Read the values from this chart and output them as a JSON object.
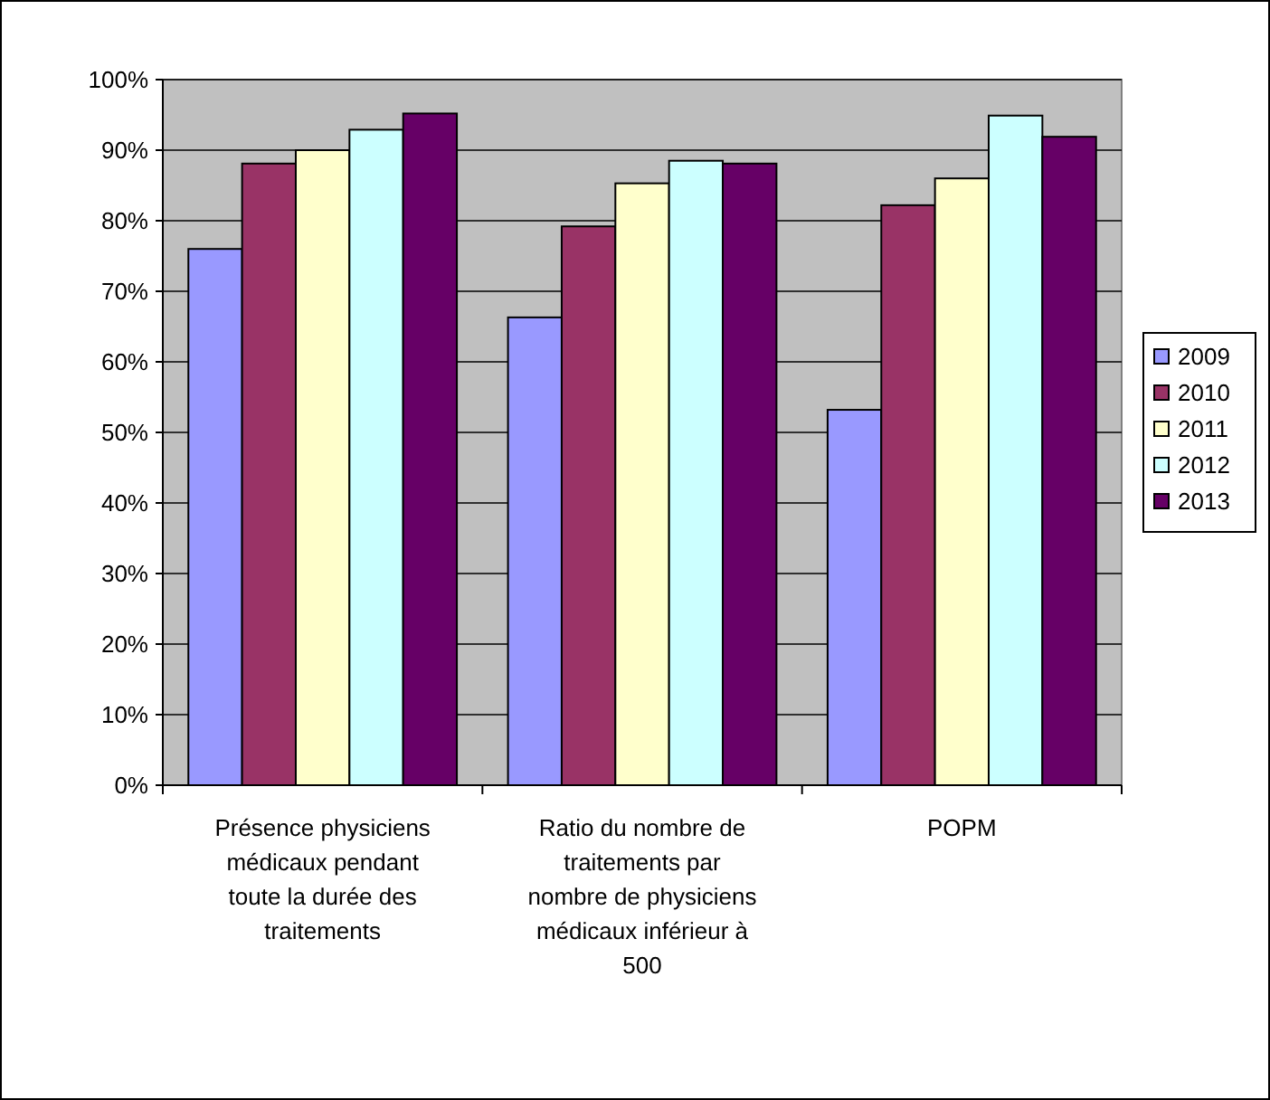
{
  "chart_data": {
    "type": "bar",
    "categories": [
      "Présence physiciens médicaux pendant toute la durée des traitements",
      "Ratio du nombre de traitements par nombre de physiciens médicaux inférieur à 500",
      "POPM"
    ],
    "series": [
      {
        "name": "2009",
        "color": "#9999ff",
        "values": [
          0.76,
          0.663,
          0.532
        ]
      },
      {
        "name": "2010",
        "color": "#993366",
        "values": [
          0.881,
          0.792,
          0.822
        ]
      },
      {
        "name": "2011",
        "color": "#ffffcc",
        "values": [
          0.9,
          0.853,
          0.86
        ]
      },
      {
        "name": "2012",
        "color": "#ccffff",
        "values": [
          0.929,
          0.885,
          0.949
        ]
      },
      {
        "name": "2013",
        "color": "#660066",
        "values": [
          0.952,
          0.881,
          0.919
        ]
      }
    ],
    "ylim": [
      0,
      1
    ],
    "yticks": [
      {
        "value": 0,
        "label": "0%"
      },
      {
        "value": 0.1,
        "label": "10%"
      },
      {
        "value": 0.2,
        "label": "20%"
      },
      {
        "value": 0.3,
        "label": "30%"
      },
      {
        "value": 0.4,
        "label": "40%"
      },
      {
        "value": 0.5,
        "label": "50%"
      },
      {
        "value": 0.6,
        "label": "60%"
      },
      {
        "value": 0.7,
        "label": "70%"
      },
      {
        "value": 0.8,
        "label": "80%"
      },
      {
        "value": 0.9,
        "label": "90%"
      },
      {
        "value": 1,
        "label": "100%"
      }
    ],
    "grid": "y",
    "legend": "right"
  }
}
